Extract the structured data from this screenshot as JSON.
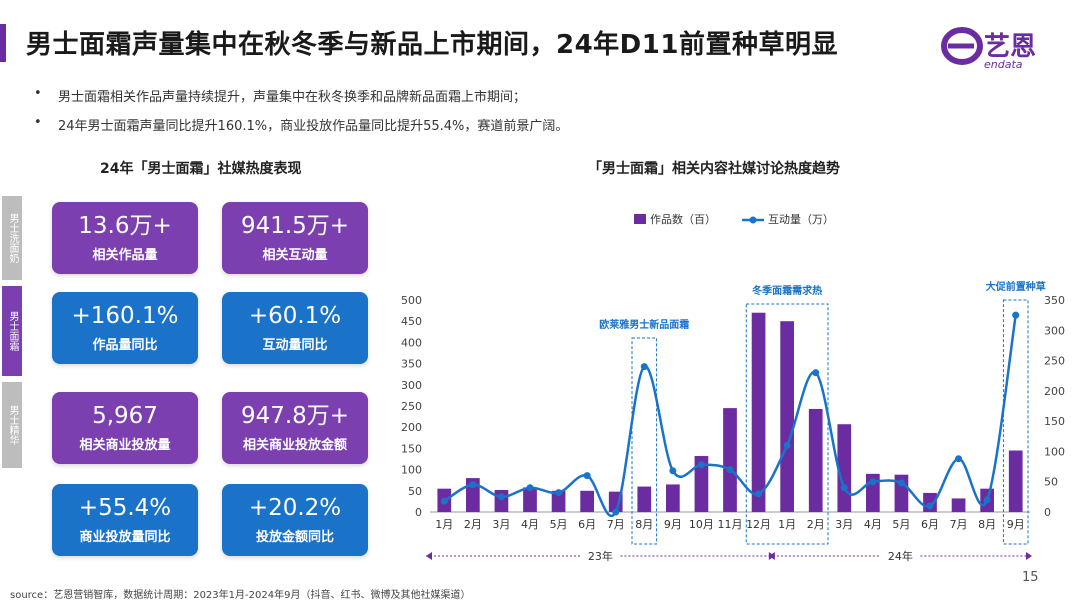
{
  "title": "男士面霜声量集中在秋冬季与新品上市期间，24年D11前置种草明显",
  "logo": {
    "text": "艺恩",
    "sub": "endata"
  },
  "bullets": [
    "男士面霜相关作品声量持续提升，声量集中在秋冬换季和品牌新品面霜上市期间；",
    "24年男士面霜声量同比提升160.1%，商业投放作品量同比提升55.4%，赛道前景广阔。"
  ],
  "left_title": "24年「男士面霜」社媒热度表现",
  "side_tabs": [
    "男士洗面奶",
    "男士面霜",
    "男士精华"
  ],
  "cards": [
    {
      "value": "13.6万+",
      "label": "相关作品量",
      "color": "purple"
    },
    {
      "value": "941.5万+",
      "label": "相关互动量",
      "color": "purple"
    },
    {
      "value": "+160.1%",
      "label": "作品量同比",
      "color": "blue"
    },
    {
      "value": "+60.1%",
      "label": "互动量同比",
      "color": "blue"
    },
    {
      "value": "5,967",
      "label": "相关商业投放量",
      "color": "purple"
    },
    {
      "value": "947.8万+",
      "label": "相关商业投放金额",
      "color": "purple"
    },
    {
      "value": "+55.4%",
      "label": "商业投放量同比",
      "color": "blue"
    },
    {
      "value": "+20.2%",
      "label": "投放金额同比",
      "color": "blue"
    }
  ],
  "right_title": "「男士面霜」相关内容社媒讨论热度趋势",
  "chart_data": {
    "type": "bar",
    "categories": [
      "1月",
      "2月",
      "3月",
      "4月",
      "5月",
      "6月",
      "7月",
      "8月",
      "9月",
      "10月",
      "11月",
      "12月",
      "1月",
      "2月",
      "3月",
      "4月",
      "5月",
      "6月",
      "7月",
      "8月",
      "9月"
    ],
    "series": [
      {
        "name": "作品数（百）",
        "type": "bar",
        "axis": "left",
        "color": "#6a2ca0",
        "values": [
          55,
          80,
          52,
          58,
          50,
          50,
          48,
          60,
          65,
          132,
          245,
          470,
          450,
          243,
          207,
          90,
          88,
          45,
          32,
          55,
          145
        ]
      },
      {
        "name": "互动量（万）",
        "type": "line",
        "axis": "right",
        "color": "#1a73c8",
        "values": [
          18,
          45,
          25,
          40,
          32,
          60,
          0,
          240,
          68,
          78,
          70,
          30,
          110,
          230,
          40,
          50,
          48,
          10,
          88,
          20,
          325
        ]
      }
    ],
    "ylim_left": [
      0,
      500
    ],
    "ylim_right": [
      0,
      350
    ],
    "yticks_left": [
      0,
      50,
      100,
      150,
      200,
      250,
      300,
      350,
      400,
      450,
      500
    ],
    "yticks_right": [
      0,
      50,
      100,
      150,
      200,
      250,
      300,
      350
    ],
    "legend_position": "top",
    "annotations": [
      {
        "text": "欧莱雅男士新品面霜",
        "from_index": 7,
        "to_index": 7
      },
      {
        "text": "冬季面霜需求热",
        "from_index": 11,
        "to_index": 13
      },
      {
        "text": "大促前置种草",
        "from_index": 20,
        "to_index": 20
      }
    ],
    "year_groups": [
      {
        "label": "23年",
        "from_index": 0,
        "to_index": 11
      },
      {
        "label": "24年",
        "from_index": 12,
        "to_index": 20
      }
    ]
  },
  "source": "source：艺恩营销智库，数据统计周期：2023年1月-2024年9月（抖音、红书、微博及其他社媒渠道）",
  "page_number": "15"
}
